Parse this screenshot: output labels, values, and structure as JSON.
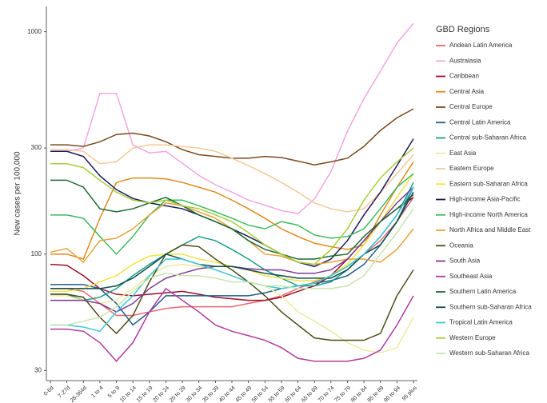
{
  "chart_data": {
    "type": "line",
    "y_label": "New cases per 100,000",
    "legend_title": "GBD Regions",
    "legend_position": "right",
    "log_scale": true,
    "grid": false,
    "categories": [
      "0-6d",
      "7-27d",
      "28-364d",
      "1 to 4",
      "5 to 9",
      "10 to 14",
      "15 to 19",
      "20 to 24",
      "25 to 29",
      "30 to 34",
      "35 to 39",
      "40 to 44",
      "45 to 49",
      "50 to 54",
      "55 to 59",
      "60 to 64",
      "65 to 69",
      "70 to 74",
      "75 to 79",
      "80 to 84",
      "85 to 89",
      "90 to 94",
      "95 plus"
    ],
    "ylim": [
      27,
      1300
    ],
    "yticks": [
      30,
      100,
      300,
      1000
    ],
    "series": [
      {
        "name": "Andean Latin America",
        "color": "#e8676f",
        "values": [
          70,
          70,
          68,
          60,
          53,
          53,
          55,
          57,
          58,
          58,
          58,
          58,
          60,
          62,
          65,
          70,
          75,
          80,
          88,
          100,
          115,
          140,
          180
        ]
      },
      {
        "name": "Australasia",
        "color": "#f4a6e0",
        "values": [
          290,
          290,
          300,
          528,
          528,
          310,
          285,
          290,
          256,
          226,
          205,
          190,
          175,
          166,
          157,
          152,
          177,
          235,
          357,
          500,
          665,
          890,
          1090
        ]
      },
      {
        "name": "Caribbean",
        "color": "#9e0e2c",
        "values": [
          90,
          89,
          80,
          70,
          66,
          65,
          66,
          67,
          68,
          66,
          64,
          63,
          62,
          62,
          64,
          68,
          72,
          80,
          95,
          115,
          140,
          160,
          180
        ]
      },
      {
        "name": "Central Asia",
        "color": "#e08a1e",
        "values": [
          100,
          100,
          95,
          145,
          210,
          220,
          220,
          218,
          210,
          200,
          190,
          175,
          160,
          145,
          130,
          120,
          112,
          108,
          105,
          110,
          150,
          200,
          260
        ]
      },
      {
        "name": "Central Europe",
        "color": "#7b4a1e",
        "values": [
          310,
          310,
          305,
          320,
          345,
          350,
          340,
          320,
          295,
          280,
          275,
          270,
          270,
          275,
          272,
          262,
          252,
          260,
          270,
          305,
          360,
          410,
          450
        ]
      },
      {
        "name": "Central Latin America",
        "color": "#1f5f8b",
        "values": [
          73,
          73,
          73,
          70,
          60,
          48,
          55,
          65,
          65,
          65,
          65,
          65,
          65,
          67,
          70,
          72,
          74,
          76,
          80,
          90,
          110,
          140,
          200
        ]
      },
      {
        "name": "Central sub-Saharan Africa",
        "color": "#1b9e8a",
        "values": [
          66,
          66,
          62,
          64,
          70,
          80,
          90,
          100,
          110,
          120,
          115,
          105,
          95,
          85,
          78,
          72,
          72,
          75,
          85,
          100,
          120,
          150,
          210
        ]
      },
      {
        "name": "East Asia",
        "color": "#eceaa0",
        "values": [
          65,
          65,
          62,
          60,
          62,
          70,
          80,
          88,
          90,
          88,
          85,
          80,
          75,
          72,
          65,
          55,
          50,
          45,
          40,
          37,
          36,
          38,
          52
        ]
      },
      {
        "name": "Eastern Europe",
        "color": "#f5c99a",
        "values": [
          295,
          295,
          290,
          255,
          260,
          300,
          310,
          310,
          305,
          300,
          290,
          270,
          250,
          230,
          210,
          190,
          170,
          160,
          155,
          160,
          190,
          230,
          280
        ]
      },
      {
        "name": "Eastern sub-Saharan Africa",
        "color": "#f0e442",
        "values": [
          68,
          68,
          70,
          75,
          80,
          90,
          98,
          100,
          100,
          95,
          92,
          88,
          85,
          80,
          78,
          76,
          76,
          80,
          90,
          110,
          140,
          180,
          230
        ]
      },
      {
        "name": "High-income Asia-Pacific",
        "color": "#1a1a5e",
        "values": [
          290,
          290,
          275,
          225,
          195,
          178,
          170,
          165,
          160,
          150,
          140,
          130,
          120,
          110,
          100,
          92,
          88,
          95,
          115,
          150,
          190,
          250,
          330
        ]
      },
      {
        "name": "High-income North America",
        "color": "#3dbb5c",
        "values": [
          150,
          150,
          145,
          120,
          100,
          120,
          150,
          175,
          175,
          165,
          155,
          145,
          135,
          130,
          140,
          135,
          122,
          118,
          120,
          130,
          160,
          200,
          230
        ]
      },
      {
        "name": "North Africa and Middle East",
        "color": "#e7a33a",
        "values": [
          102,
          106,
          92,
          115,
          118,
          130,
          150,
          170,
          165,
          155,
          145,
          130,
          115,
          100,
          98,
          92,
          90,
          92,
          95,
          95,
          92,
          105,
          130
        ]
      },
      {
        "name": "Oceania",
        "color": "#4d4d1a",
        "values": [
          66,
          66,
          64,
          52,
          44,
          53,
          75,
          100,
          110,
          108,
          95,
          85,
          75,
          65,
          55,
          48,
          42,
          41,
          41,
          41,
          44,
          65,
          85
        ]
      },
      {
        "name": "South Asia",
        "color": "#7b3a96",
        "values": [
          62,
          62,
          62,
          60,
          55,
          60,
          70,
          78,
          82,
          86,
          88,
          88,
          86,
          85,
          85,
          82,
          82,
          85,
          95,
          115,
          140,
          170,
          200
        ]
      },
      {
        "name": "Southeast Asia",
        "color": "#b03ca0",
        "values": [
          46,
          46,
          45,
          40,
          33,
          40,
          55,
          70,
          62,
          55,
          48,
          45,
          43,
          41,
          38,
          34,
          33,
          33,
          33,
          34,
          37,
          48,
          65
        ]
      },
      {
        "name": "Southern Latin America",
        "color": "#1e6b34",
        "values": [
          215,
          215,
          200,
          160,
          155,
          160,
          170,
          180,
          165,
          150,
          140,
          130,
          115,
          105,
          100,
          95,
          95,
          98,
          100,
          120,
          140,
          160,
          185
        ]
      },
      {
        "name": "Southern sub-Saharan Africa",
        "color": "#0f4d4a",
        "values": [
          70,
          70,
          70,
          70,
          72,
          78,
          88,
          100,
          95,
          90,
          88,
          88,
          85,
          82,
          80,
          78,
          78,
          78,
          85,
          100,
          110,
          140,
          190
        ]
      },
      {
        "name": "Tropical Latin America",
        "color": "#3fc6d6",
        "values": [
          48,
          48,
          47,
          45,
          55,
          65,
          80,
          95,
          95,
          90,
          85,
          80,
          75,
          72,
          70,
          72,
          74,
          80,
          88,
          100,
          120,
          150,
          200
        ]
      },
      {
        "name": "Western Europe",
        "color": "#a6cf3a",
        "values": [
          255,
          255,
          245,
          215,
          190,
          175,
          170,
          175,
          165,
          160,
          150,
          140,
          125,
          110,
          100,
          92,
          90,
          105,
          130,
          175,
          220,
          260,
          300
        ]
      },
      {
        "name": "Western sub-Saharan Africa",
        "color": "#c9e6b1",
        "values": [
          48,
          48,
          50,
          52,
          58,
          68,
          78,
          82,
          80,
          80,
          78,
          75,
          75,
          72,
          72,
          70,
          70,
          70,
          72,
          80,
          100,
          125,
          160
        ]
      }
    ]
  }
}
